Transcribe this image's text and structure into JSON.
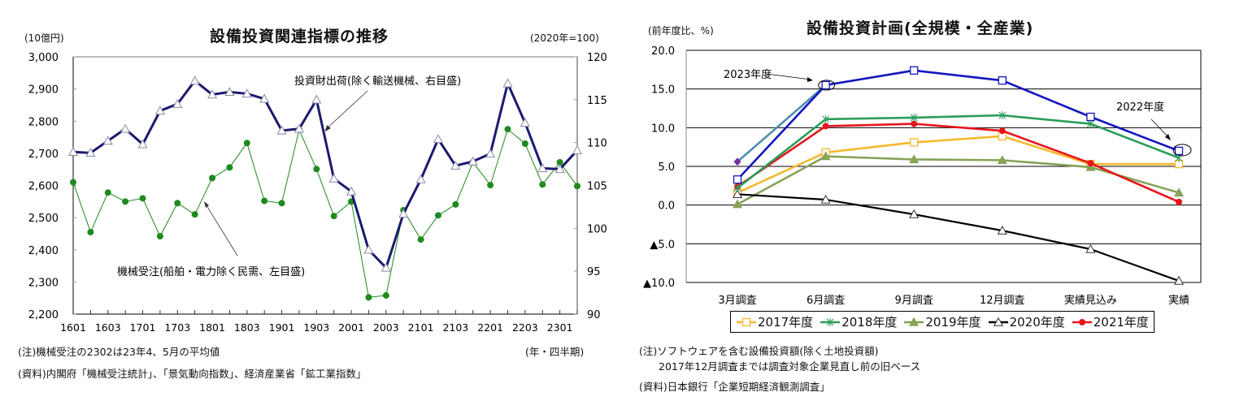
{
  "left": {
    "unit_left": "(10億円)",
    "unit_right": "(2020年=100)",
    "note1": "(注)機械受注の2302は23年4、5月の平均値",
    "note_axis": "(年・四半期)",
    "source": "(資料)内閣府「機械受注統計」、「景気動向指数」、経済産業省「鉱工業指数」"
  },
  "right": {
    "unit": "(前年度比、%)",
    "note1": "(注)ソフトウェアを含む設備投資額(除く土地投資額)",
    "note2": "2017年12月調査までは調査対象企業見直し前の旧ベース",
    "source": "(資料)日本銀行「企業短期経済観測調査」"
  },
  "chart_data": [
    {
      "type": "line",
      "title": "設備投資関連指標の推移",
      "xlabel": "(年・四半期)",
      "ylabel": "(10億円)",
      "ylabel_right": "(2020年=100)",
      "ylim": [
        2200,
        3000
      ],
      "ylim_right": [
        90,
        120
      ],
      "yticks": [
        "2,200",
        "2,300",
        "2,400",
        "2,500",
        "2,600",
        "2,700",
        "2,800",
        "2,900",
        "3,000"
      ],
      "yticks_right": [
        "90",
        "95",
        "100",
        "105",
        "110",
        "115",
        "120"
      ],
      "grid": false,
      "x": [
        "1601",
        "1602",
        "1603",
        "1604",
        "1701",
        "1702",
        "1703",
        "1704",
        "1801",
        "1802",
        "1803",
        "1804",
        "1901",
        "1902",
        "1903",
        "1904",
        "2001",
        "2002",
        "2003",
        "2004",
        "2101",
        "2102",
        "2103",
        "2104",
        "2201",
        "2202",
        "2203",
        "2204",
        "2301",
        "2302"
      ],
      "xtick_labels": [
        "1601",
        "1603",
        "1701",
        "1703",
        "1801",
        "1803",
        "1901",
        "1903",
        "2001",
        "2003",
        "2101",
        "2103",
        "2201",
        "2203",
        "2301"
      ],
      "series": [
        {
          "name": "投資財出荷(除く輸送機械、右目盛)",
          "axis": "right",
          "color": "#1a1a6e",
          "marker": "triangle-open",
          "values": [
            108.9,
            108.8,
            110.2,
            111.6,
            109.8,
            113.7,
            114.5,
            117.2,
            115.6,
            115.9,
            115.7,
            115.1,
            111.4,
            111.6,
            115.0,
            105.8,
            104.3,
            97.5,
            95.4,
            101.7,
            105.7,
            110.4,
            107.3,
            107.8,
            108.7,
            116.9,
            112.3,
            107.0,
            106.9,
            109.1
          ]
        },
        {
          "name": "機械受注(船舶・電力除く民需、左目盛)",
          "axis": "left",
          "color": "#1e8a1e",
          "marker": "circle-filled",
          "values": [
            2610,
            2455,
            2578,
            2550,
            2560,
            2442,
            2545,
            2510,
            2623,
            2656,
            2732,
            2552,
            2545,
            2773,
            2651,
            2505,
            2550,
            2252,
            2258,
            2523,
            2432,
            2507,
            2541,
            2672,
            2601,
            2775,
            2730,
            2603,
            2672,
            2598
          ]
        }
      ],
      "annotations": [
        {
          "text": "投資財出荷(除く輸送機械、右目盛)",
          "target_series": 0
        },
        {
          "text": "機械受注(船舶・電力除く民需、左目盛)",
          "target_series": 1
        }
      ]
    },
    {
      "type": "line",
      "title": "設備投資計画(全規模・全産業)",
      "ylabel": "(前年度比、%)",
      "ylim": [
        -10,
        20
      ],
      "yticks": [
        "▲10.0",
        "▲5.0",
        "0.0",
        "5.0",
        "10.0",
        "15.0",
        "20.0"
      ],
      "grid": true,
      "legend": "bottom",
      "categories": [
        "3月調査",
        "6月調査",
        "9月調査",
        "12月調査",
        "実績見込み",
        "実績"
      ],
      "series": [
        {
          "name": "2017年度",
          "color": "#f5b82e",
          "marker": "square-open",
          "in_legend": true,
          "values": [
            1.6,
            6.8,
            8.1,
            8.9,
            5.3,
            5.3
          ]
        },
        {
          "name": "2018年度",
          "color": "#2a9d5a",
          "marker": "asterisk",
          "in_legend": true,
          "values": [
            2.2,
            11.1,
            11.3,
            11.6,
            10.5,
            6.1
          ]
        },
        {
          "name": "2019年度",
          "color": "#86a356",
          "marker": "triangle-filled",
          "in_legend": true,
          "values": [
            0.1,
            6.3,
            5.9,
            5.8,
            4.9,
            1.6
          ]
        },
        {
          "name": "2020年度",
          "color": "#000000",
          "marker": "triangle-open",
          "in_legend": true,
          "values": [
            1.4,
            0.7,
            -1.2,
            -3.3,
            -5.7,
            -9.8
          ]
        },
        {
          "name": "2021年度",
          "color": "#e8141b",
          "marker": "circle-filled",
          "in_legend": true,
          "values": [
            2.4,
            10.2,
            10.5,
            9.6,
            5.4,
            0.4
          ]
        },
        {
          "name": "2022年度",
          "color": "#1515c0",
          "marker": "square-open",
          "in_legend": false,
          "values": [
            3.3,
            15.5,
            17.4,
            16.1,
            11.4,
            7.0
          ]
        },
        {
          "name": "2023年度",
          "color": "#4f8fae",
          "marker": "diamond-filled",
          "marker_color": "#7030a0",
          "in_legend": false,
          "values": [
            5.6,
            15.5,
            null,
            null,
            null,
            null
          ]
        }
      ],
      "annotations": [
        {
          "text": "2023年度",
          "target": "6月調査"
        },
        {
          "text": "2022年度",
          "target": "実績"
        }
      ]
    }
  ]
}
